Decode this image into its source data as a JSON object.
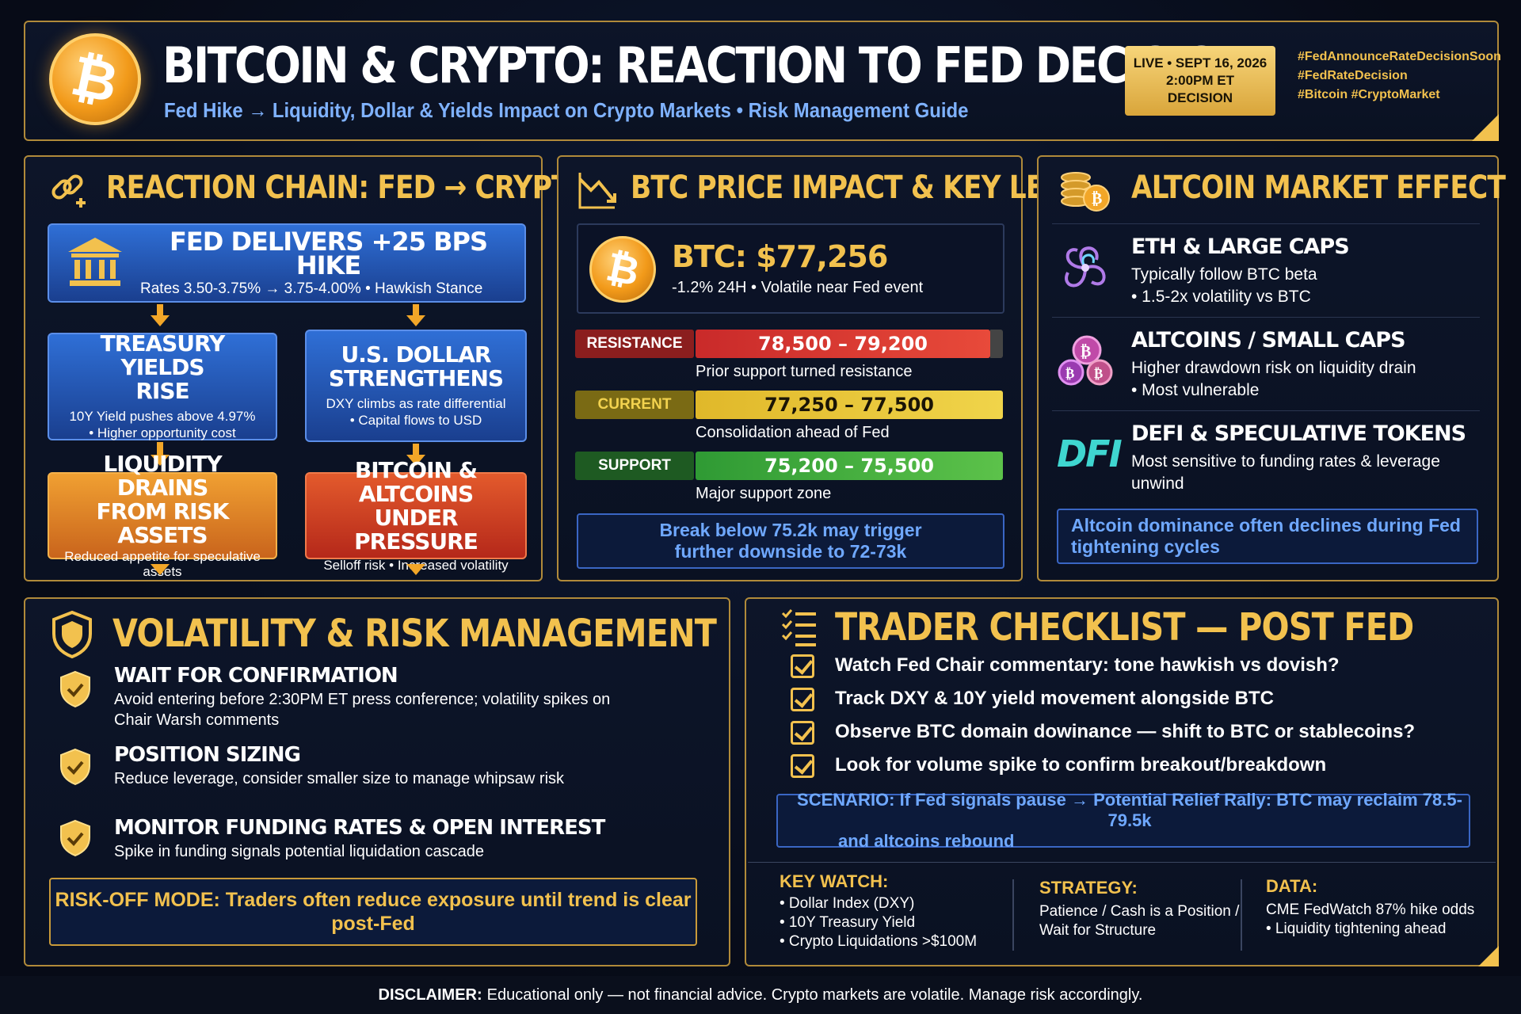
{
  "header": {
    "title": "BITCOIN & CRYPTO: REACTION TO FED DECISION",
    "subtitle": "Fed Hike → Liquidity, Dollar & Yields Impact on Crypto Markets • Risk Management Guide",
    "live_line1": "LIVE • SEPT 16, 2026",
    "live_line2": "2:00PM ET",
    "live_line3": "DECISION",
    "hashtag1": "#FedAnnounceRateDecisionSoon",
    "hashtag2": "#FedRateDecision",
    "hashtag3": "#Bitcoin #CryptoMarket",
    "logo_icon": "bitcoin-icon"
  },
  "chain": {
    "title": "REACTION CHAIN: FED → CRYPTO",
    "fed_title": "FED DELIVERS +25 BPS HIKE",
    "fed_sub": "Rates 3.50-3.75% → 3.75-4.00% • Hawkish Stance",
    "yields_title1": "TREASURY YIELDS",
    "yields_title2": "RISE",
    "yields_sub1": "10Y Yield pushes above 4.97%",
    "yields_sub2": "• Higher opportunity cost",
    "dollar_title1": "U.S. DOLLAR",
    "dollar_title2": "STRENGTHENS",
    "dollar_sub1": "DXY climbs as rate differential",
    "dollar_sub2": "• Capital flows to USD",
    "liq_title1": "LIQUIDITY DRAINS",
    "liq_title2": "FROM RISK ASSETS",
    "liq_sub1": "Reduced appetite for speculative",
    "liq_sub2": "assets",
    "btc_title1": "BITCOIN & ALTCOINS",
    "btc_title2": "UNDER PRESSURE",
    "btc_sub": "Selloff risk • Increased volatility"
  },
  "btc": {
    "title": "BTC PRICE IMPACT & KEY LEVELS",
    "price": "BTC: $77,256",
    "change": "-1.2% 24H • Volatile near Fed event",
    "levels": [
      {
        "tag": "RESISTANCE",
        "range": "78,500 – 79,200",
        "note": "Prior support turned resistance",
        "color": "#e03a32"
      },
      {
        "tag": "CURRENT",
        "range": "77,250 – 77,500",
        "note": "Consolidation ahead of Fed",
        "color": "#e8c233"
      },
      {
        "tag": "SUPPORT",
        "range": "75,200 – 75,500",
        "note": "Major support zone",
        "color": "#3fae3f"
      }
    ],
    "break_line1": "Break below 75.2k may trigger",
    "break_line2": "further downside to 72-73k"
  },
  "alt": {
    "title": "ALTCOIN MARKET EFFECT",
    "eth_title": "ETH & LARGE CAPS",
    "eth_sub1": "Typically follow BTC beta",
    "eth_sub2": "• 1.5-2x volatility vs BTC",
    "small_title": "ALTCOINS / SMALL CAPS",
    "small_sub1": "Higher drawdown risk on liquidity drain",
    "small_sub2": "• Most vulnerable",
    "defi_logo": "DFI",
    "defi_title": "DEFI & SPECULATIVE TOKENS",
    "defi_sub1": "Most sensitive to funding rates & leverage",
    "defi_sub2": "unwind",
    "note1": "Altcoin dominance often declines during Fed",
    "note2": "tightening cycles"
  },
  "risk": {
    "title": "VOLATILITY & RISK MANAGEMENT",
    "items": [
      {
        "title": "WAIT FOR CONFIRMATION",
        "sub1": "Avoid entering before 2:30PM ET press conference; volatility spikes on",
        "sub2": "Chair Warsh comments"
      },
      {
        "title": "POSITION SIZING",
        "sub1": "Reduce leverage, consider smaller size to manage whipsaw risk",
        "sub2": ""
      },
      {
        "title": "MONITOR FUNDING RATES & OPEN INTEREST",
        "sub1": "Spike in funding signals potential liquidation cascade",
        "sub2": ""
      }
    ],
    "mode_label": "RISK-OFF MODE:",
    "mode_text1": "Traders often reduce exposure until trend is clear",
    "mode_text2": "post-Fed"
  },
  "checklist": {
    "title": "TRADER CHECKLIST — POST FED",
    "items": [
      "Watch Fed Chair commentary: tone hawkish vs dovish?",
      "Track DXY & 10Y yield movement alongside BTC",
      "Observe BTC domain dowinance — shift to BTC or stablecoins?",
      "Look for volume spike to confirm breakout/breakdown"
    ],
    "scenario1": "SCENARIO: If Fed signals pause → Potential Relief Rally: BTC may reclaim 78.5-79.5k",
    "scenario2": "and altcoins rebound",
    "keywatch_title": "KEY WATCH:",
    "keywatch": [
      "• Dollar Index (DXY)",
      "• 10Y Treasury Yield",
      "• Crypto Liquidations >$100M"
    ],
    "strategy_title": "STRATEGY:",
    "strategy1": "Patience / Cash is a Position /",
    "strategy2": "Wait for Structure",
    "data_title": "DATA:",
    "data1": "CME FedWatch 87% hike odds",
    "data2": "• Liquidity tightening ahead"
  },
  "disclaimer": {
    "label": "DISCLAIMER:",
    "text": "Educational only — not financial advice. Crypto markets are volatile. Manage risk accordingly."
  }
}
